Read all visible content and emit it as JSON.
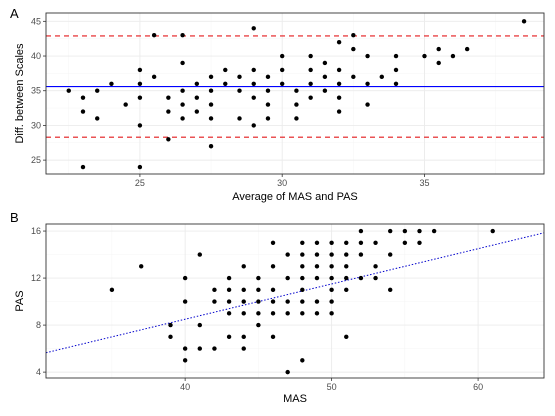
{
  "chart_data": [
    {
      "panel_label": "A",
      "type": "scatter",
      "xlabel": "Average of MAS and PAS",
      "ylabel": "Diff. between Scales",
      "xlim": [
        21.7,
        39.2
      ],
      "ylim": [
        23,
        46.2
      ],
      "xticks": [
        25,
        30,
        35
      ],
      "yticks": [
        25,
        30,
        35,
        40,
        45
      ],
      "grid": true,
      "reference_lines": {
        "mean": 35.6,
        "upper_limit": 42.9,
        "lower_limit": 28.3,
        "mean_color": "#0000ff",
        "limit_color": "#e41a1c"
      },
      "points": [
        [
          22.5,
          35
        ],
        [
          23,
          24
        ],
        [
          23,
          32
        ],
        [
          23,
          34
        ],
        [
          23.5,
          31
        ],
        [
          23.5,
          35
        ],
        [
          24,
          36
        ],
        [
          24.5,
          33
        ],
        [
          25,
          24
        ],
        [
          25,
          30
        ],
        [
          25,
          34
        ],
        [
          25,
          36
        ],
        [
          25,
          38
        ],
        [
          25.5,
          37
        ],
        [
          25.5,
          43
        ],
        [
          26,
          28
        ],
        [
          26,
          32
        ],
        [
          26,
          34
        ],
        [
          26.5,
          31
        ],
        [
          26.5,
          33
        ],
        [
          26.5,
          35
        ],
        [
          26.5,
          39
        ],
        [
          26.5,
          43
        ],
        [
          27,
          32
        ],
        [
          27,
          34
        ],
        [
          27,
          36
        ],
        [
          27.5,
          27
        ],
        [
          27.5,
          31
        ],
        [
          27.5,
          33
        ],
        [
          27.5,
          35
        ],
        [
          27.5,
          37
        ],
        [
          28,
          36
        ],
        [
          28,
          38
        ],
        [
          28.5,
          31
        ],
        [
          28.5,
          35
        ],
        [
          28.5,
          37
        ],
        [
          29,
          30
        ],
        [
          29,
          34
        ],
        [
          29,
          36
        ],
        [
          29,
          38
        ],
        [
          29,
          44
        ],
        [
          29.5,
          31
        ],
        [
          29.5,
          33
        ],
        [
          29.5,
          35
        ],
        [
          29.5,
          37
        ],
        [
          30,
          36
        ],
        [
          30,
          38
        ],
        [
          30,
          40
        ],
        [
          30.5,
          31
        ],
        [
          30.5,
          33
        ],
        [
          30.5,
          35
        ],
        [
          31,
          34
        ],
        [
          31,
          36
        ],
        [
          31,
          38
        ],
        [
          31,
          40
        ],
        [
          31.5,
          35
        ],
        [
          31.5,
          37
        ],
        [
          31.5,
          39
        ],
        [
          32,
          32
        ],
        [
          32,
          34
        ],
        [
          32,
          36
        ],
        [
          32,
          38
        ],
        [
          32,
          42
        ],
        [
          32.5,
          37
        ],
        [
          32.5,
          41
        ],
        [
          32.5,
          43
        ],
        [
          33,
          33
        ],
        [
          33,
          36
        ],
        [
          33,
          40
        ],
        [
          33.5,
          37
        ],
        [
          34,
          36
        ],
        [
          34,
          38
        ],
        [
          34,
          40
        ],
        [
          35,
          40
        ],
        [
          35.5,
          39
        ],
        [
          35.5,
          41
        ],
        [
          36,
          40
        ],
        [
          36.5,
          41
        ],
        [
          38.5,
          45
        ]
      ]
    },
    {
      "panel_label": "B",
      "type": "scatter",
      "xlabel": "MAS",
      "ylabel": "PAS",
      "xlim": [
        30.5,
        64.5
      ],
      "ylim": [
        3.5,
        16.6
      ],
      "xticks": [
        40,
        50,
        60
      ],
      "yticks": [
        4,
        8,
        12,
        16
      ],
      "grid": true,
      "trend_line": {
        "style": "dotted",
        "color": "#0000cc",
        "intercept": -3.5,
        "slope": 0.3
      },
      "points": [
        [
          35,
          11
        ],
        [
          37,
          13
        ],
        [
          39,
          7
        ],
        [
          39,
          8
        ],
        [
          40,
          5
        ],
        [
          40,
          6
        ],
        [
          40,
          10
        ],
        [
          40,
          12
        ],
        [
          41,
          6
        ],
        [
          41,
          8
        ],
        [
          41,
          14
        ],
        [
          42,
          6
        ],
        [
          42,
          10
        ],
        [
          42,
          11
        ],
        [
          43,
          7
        ],
        [
          43,
          9
        ],
        [
          43,
          10
        ],
        [
          43,
          11
        ],
        [
          43,
          12
        ],
        [
          44,
          6
        ],
        [
          44,
          7
        ],
        [
          44,
          9
        ],
        [
          44,
          10
        ],
        [
          44,
          11
        ],
        [
          44,
          13
        ],
        [
          45,
          8
        ],
        [
          45,
          9
        ],
        [
          45,
          10
        ],
        [
          45,
          11
        ],
        [
          45,
          12
        ],
        [
          46,
          7
        ],
        [
          46,
          9
        ],
        [
          46,
          10
        ],
        [
          46,
          11
        ],
        [
          46,
          13
        ],
        [
          46,
          15
        ],
        [
          47,
          4
        ],
        [
          47,
          9
        ],
        [
          47,
          10
        ],
        [
          47,
          12
        ],
        [
          47,
          14
        ],
        [
          48,
          5
        ],
        [
          48,
          9
        ],
        [
          48,
          10
        ],
        [
          48,
          11
        ],
        [
          48,
          12
        ],
        [
          48,
          13
        ],
        [
          48,
          14
        ],
        [
          48,
          15
        ],
        [
          49,
          9
        ],
        [
          49,
          10
        ],
        [
          49,
          12
        ],
        [
          49,
          13
        ],
        [
          49,
          14
        ],
        [
          49,
          15
        ],
        [
          50,
          9
        ],
        [
          50,
          10
        ],
        [
          50,
          11
        ],
        [
          50,
          12
        ],
        [
          50,
          13
        ],
        [
          50,
          14
        ],
        [
          50,
          15
        ],
        [
          51,
          7
        ],
        [
          51,
          11
        ],
        [
          51,
          12
        ],
        [
          51,
          13
        ],
        [
          51,
          14
        ],
        [
          51,
          15
        ],
        [
          52,
          12
        ],
        [
          52,
          14
        ],
        [
          52,
          15
        ],
        [
          52,
          16
        ],
        [
          53,
          12
        ],
        [
          53,
          13
        ],
        [
          53,
          15
        ],
        [
          54,
          11
        ],
        [
          54,
          14
        ],
        [
          54,
          16
        ],
        [
          55,
          15
        ],
        [
          55,
          16
        ],
        [
          56,
          15
        ],
        [
          56,
          16
        ],
        [
          57,
          16
        ],
        [
          61,
          16
        ]
      ]
    }
  ]
}
